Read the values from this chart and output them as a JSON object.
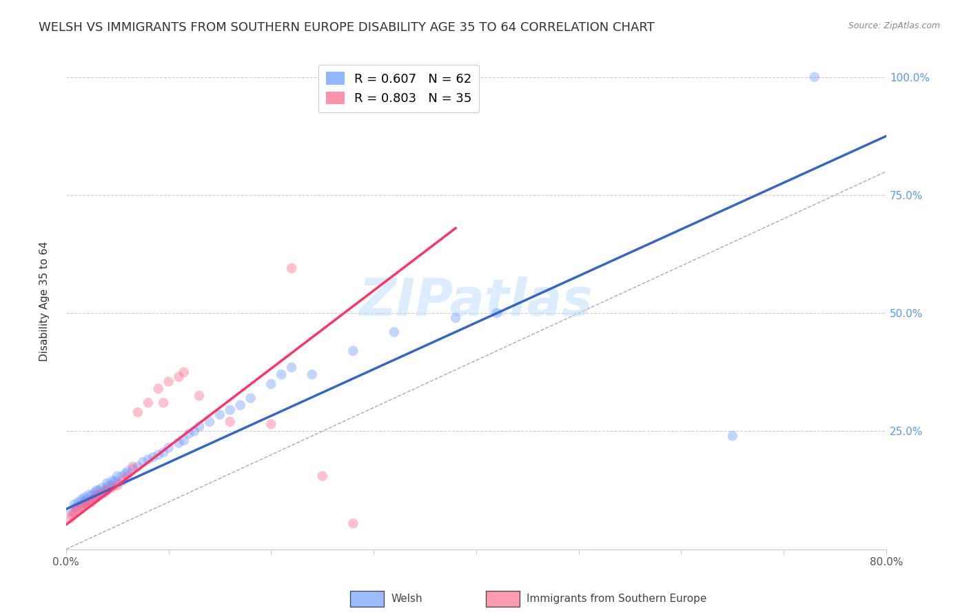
{
  "title": "WELSH VS IMMIGRANTS FROM SOUTHERN EUROPE DISABILITY AGE 35 TO 64 CORRELATION CHART",
  "source": "Source: ZipAtlas.com",
  "ylabel": "Disability Age 35 to 64",
  "watermark": "ZIPatlas",
  "xlim": [
    0.0,
    0.8
  ],
  "ylim": [
    0.0,
    1.05
  ],
  "xtick_positions": [
    0.0,
    0.1,
    0.2,
    0.3,
    0.4,
    0.5,
    0.6,
    0.7,
    0.8
  ],
  "xticklabels": [
    "0.0%",
    "",
    "",
    "",
    "",
    "",
    "",
    "",
    "80.0%"
  ],
  "ytick_positions": [
    0.0,
    0.25,
    0.5,
    0.75,
    1.0
  ],
  "yticklabels_right": [
    "",
    "25.0%",
    "50.0%",
    "75.0%",
    "100.0%"
  ],
  "welsh_color": "#6699ff",
  "immigrant_color": "#ff6688",
  "welsh_R": 0.607,
  "welsh_N": 62,
  "immigrant_R": 0.803,
  "immigrant_N": 35,
  "welsh_scatter_x": [
    0.005,
    0.008,
    0.01,
    0.012,
    0.015,
    0.015,
    0.018,
    0.018,
    0.02,
    0.02,
    0.022,
    0.022,
    0.025,
    0.025,
    0.028,
    0.028,
    0.03,
    0.03,
    0.032,
    0.032,
    0.035,
    0.035,
    0.038,
    0.04,
    0.04,
    0.042,
    0.045,
    0.045,
    0.048,
    0.05,
    0.05,
    0.055,
    0.058,
    0.06,
    0.065,
    0.07,
    0.075,
    0.08,
    0.085,
    0.09,
    0.095,
    0.1,
    0.11,
    0.115,
    0.12,
    0.125,
    0.13,
    0.14,
    0.15,
    0.16,
    0.17,
    0.18,
    0.2,
    0.21,
    0.22,
    0.24,
    0.28,
    0.32,
    0.38,
    0.42,
    0.65,
    0.73
  ],
  "welsh_scatter_y": [
    0.08,
    0.095,
    0.09,
    0.1,
    0.095,
    0.105,
    0.1,
    0.11,
    0.095,
    0.105,
    0.1,
    0.115,
    0.105,
    0.115,
    0.11,
    0.12,
    0.115,
    0.125,
    0.115,
    0.125,
    0.12,
    0.13,
    0.125,
    0.13,
    0.14,
    0.135,
    0.135,
    0.145,
    0.145,
    0.14,
    0.155,
    0.155,
    0.16,
    0.165,
    0.17,
    0.175,
    0.185,
    0.19,
    0.195,
    0.2,
    0.205,
    0.215,
    0.225,
    0.23,
    0.245,
    0.25,
    0.26,
    0.27,
    0.285,
    0.295,
    0.305,
    0.32,
    0.35,
    0.37,
    0.385,
    0.37,
    0.42,
    0.46,
    0.49,
    0.5,
    0.24,
    1.0
  ],
  "immigrant_scatter_x": [
    0.004,
    0.006,
    0.008,
    0.01,
    0.012,
    0.015,
    0.018,
    0.02,
    0.022,
    0.025,
    0.025,
    0.028,
    0.03,
    0.032,
    0.035,
    0.038,
    0.04,
    0.045,
    0.05,
    0.055,
    0.06,
    0.065,
    0.07,
    0.08,
    0.09,
    0.095,
    0.1,
    0.11,
    0.115,
    0.13,
    0.16,
    0.2,
    0.22,
    0.25,
    0.28
  ],
  "immigrant_scatter_y": [
    0.065,
    0.072,
    0.078,
    0.082,
    0.088,
    0.09,
    0.092,
    0.095,
    0.1,
    0.1,
    0.105,
    0.108,
    0.11,
    0.115,
    0.118,
    0.12,
    0.125,
    0.13,
    0.135,
    0.145,
    0.155,
    0.175,
    0.29,
    0.31,
    0.34,
    0.31,
    0.355,
    0.365,
    0.375,
    0.325,
    0.27,
    0.265,
    0.595,
    0.155,
    0.055
  ],
  "welsh_line_color": "#3366cc",
  "immigrant_line_color": "#ff3366",
  "diag_line_color": "#aaaaaa",
  "welsh_line_x0": 0.0,
  "welsh_line_y0": 0.085,
  "welsh_line_x1": 0.8,
  "welsh_line_y1": 0.875,
  "immigrant_line_x0": 0.0,
  "immigrant_line_y0": 0.052,
  "immigrant_line_x1": 0.38,
  "immigrant_line_y1": 0.68,
  "background_color": "#ffffff",
  "grid_color": "#cccccc",
  "title_fontsize": 13,
  "axis_label_fontsize": 11,
  "tick_fontsize": 11,
  "legend_fontsize": 13,
  "scatter_size": 110,
  "scatter_alpha": 0.4,
  "line_width": 2.5
}
